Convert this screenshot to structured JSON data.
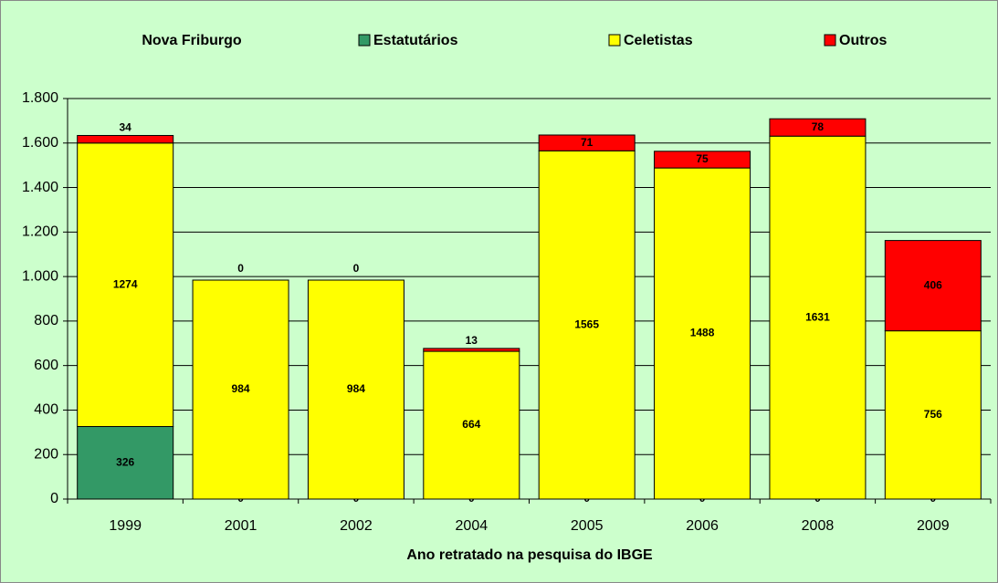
{
  "chart_data": {
    "type": "stacked_bar",
    "title": "Nova Friburgo",
    "x_label": "Ano retratado na pesquisa do IBGE",
    "categories": [
      "1999",
      "2001",
      "2002",
      "2004",
      "2005",
      "2006",
      "2008",
      "2009"
    ],
    "series": [
      {
        "name": "Estatutários",
        "color": "#339966",
        "values": [
          326,
          0,
          0,
          0,
          0,
          0,
          0,
          0
        ]
      },
      {
        "name": "Celetistas",
        "color": "#ffff00",
        "values": [
          1274,
          984,
          984,
          664,
          1565,
          1488,
          1631,
          756
        ]
      },
      {
        "name": "Outros",
        "color": "#ff0000",
        "values": [
          34,
          0,
          0,
          13,
          71,
          75,
          78,
          406
        ]
      }
    ],
    "ylim": [
      0,
      1800
    ],
    "yticks": [
      0,
      200,
      400,
      600,
      800,
      {
        "value": 1000,
        "label": "1.000"
      },
      {
        "value": 1200,
        "label": "1.200"
      },
      {
        "value": 1400,
        "label": "1.400"
      },
      {
        "value": 1600,
        "label": "1.600"
      },
      {
        "value": 1800,
        "label": "1.800"
      }
    ],
    "grid": true
  }
}
